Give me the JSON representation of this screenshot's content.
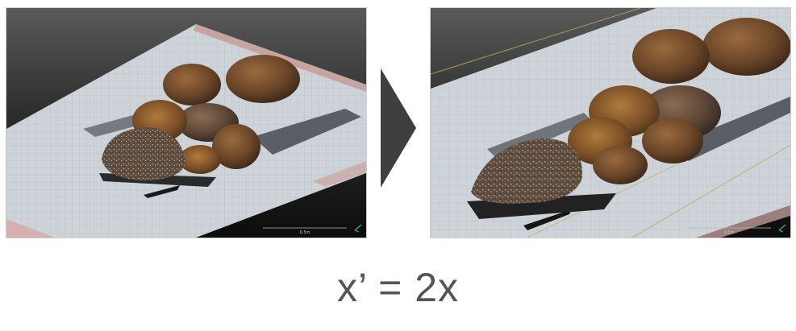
{
  "equation": "x’ = 2x",
  "panels": {
    "left": {
      "scale_label": "0.5m"
    },
    "right": {
      "scale_label": "0.5m"
    }
  },
  "icons": {
    "transition_arrow": "right-triangle-arrow",
    "axis_gizmo": "axis-gizmo-icon"
  },
  "colors": {
    "arrow": "#3f3f3f",
    "equation": "#555555",
    "grid_surface": "#c9d0d6",
    "rock_brown": "#6e4a2c",
    "background_top": "#4e4e4e",
    "background_bottom": "#0c0c0c"
  }
}
